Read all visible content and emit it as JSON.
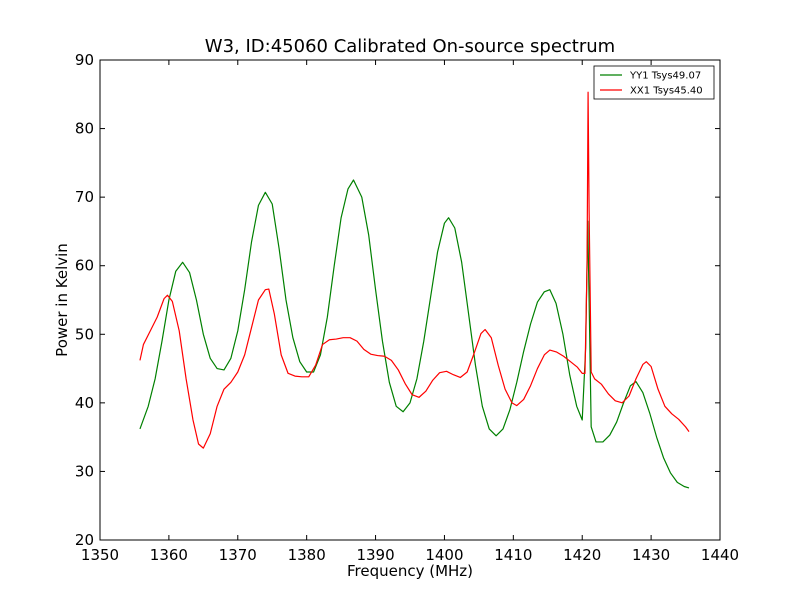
{
  "chart_data": {
    "type": "line",
    "title": "W3, ID:45060 Calibrated On-source spectrum",
    "xlabel": "Frequency (MHz)",
    "ylabel": "Power in Kelvin",
    "xlim": [
      1350,
      1440
    ],
    "ylim": [
      20,
      90
    ],
    "xticks": [
      1350,
      1360,
      1370,
      1380,
      1390,
      1400,
      1410,
      1420,
      1430,
      1440
    ],
    "yticks": [
      20,
      30,
      40,
      50,
      60,
      70,
      80,
      90
    ],
    "legend_position": "top-right",
    "series": [
      {
        "name": "YY1 Tsys49.07",
        "color": "#008000",
        "points": [
          [
            1355.8,
            36.2
          ],
          [
            1357,
            39.5
          ],
          [
            1358,
            43.5
          ],
          [
            1359,
            49.0
          ],
          [
            1360,
            55.0
          ],
          [
            1361,
            59.2
          ],
          [
            1362,
            60.5
          ],
          [
            1363,
            59.0
          ],
          [
            1364,
            55.0
          ],
          [
            1365,
            50.0
          ],
          [
            1366,
            46.5
          ],
          [
            1367,
            45.0
          ],
          [
            1368,
            44.8
          ],
          [
            1369,
            46.5
          ],
          [
            1370,
            50.5
          ],
          [
            1371,
            56.5
          ],
          [
            1372,
            63.5
          ],
          [
            1373,
            68.8
          ],
          [
            1374,
            70.7
          ],
          [
            1375,
            69.0
          ],
          [
            1376,
            62.5
          ],
          [
            1377,
            55.0
          ],
          [
            1378,
            49.5
          ],
          [
            1379,
            46.0
          ],
          [
            1380,
            44.5
          ],
          [
            1381,
            44.5
          ],
          [
            1382,
            47.0
          ],
          [
            1383,
            52.5
          ],
          [
            1384,
            60.0
          ],
          [
            1385,
            67.0
          ],
          [
            1386,
            71.2
          ],
          [
            1386.8,
            72.5
          ],
          [
            1388,
            70.0
          ],
          [
            1389,
            64.5
          ],
          [
            1390,
            56.5
          ],
          [
            1391,
            49.0
          ],
          [
            1392,
            43.0
          ],
          [
            1393,
            39.5
          ],
          [
            1394,
            38.7
          ],
          [
            1395,
            40.0
          ],
          [
            1396,
            43.5
          ],
          [
            1397,
            49.0
          ],
          [
            1398,
            55.5
          ],
          [
            1399,
            62.0
          ],
          [
            1400,
            66.2
          ],
          [
            1400.6,
            67.0
          ],
          [
            1401.5,
            65.5
          ],
          [
            1402.5,
            60.5
          ],
          [
            1403.5,
            53.0
          ],
          [
            1404.5,
            45.5
          ],
          [
            1405.5,
            39.5
          ],
          [
            1406.5,
            36.2
          ],
          [
            1407.5,
            35.2
          ],
          [
            1408.5,
            36.2
          ],
          [
            1409.5,
            39.0
          ],
          [
            1410.5,
            43.0
          ],
          [
            1411.5,
            47.5
          ],
          [
            1412.5,
            51.5
          ],
          [
            1413.5,
            54.7
          ],
          [
            1414.5,
            56.2
          ],
          [
            1415.3,
            56.5
          ],
          [
            1416.2,
            54.5
          ],
          [
            1417.2,
            50.0
          ],
          [
            1418.2,
            44.0
          ],
          [
            1419.2,
            39.5
          ],
          [
            1420.0,
            37.5
          ],
          [
            1420.5,
            48.0
          ],
          [
            1420.8,
            66.5
          ],
          [
            1421.0,
            55.0
          ],
          [
            1421.3,
            36.5
          ],
          [
            1422,
            34.3
          ],
          [
            1423,
            34.3
          ],
          [
            1424,
            35.3
          ],
          [
            1425,
            37.2
          ],
          [
            1426,
            40.0
          ],
          [
            1427,
            42.5
          ],
          [
            1427.8,
            43.1
          ],
          [
            1428.8,
            41.5
          ],
          [
            1429.8,
            38.5
          ],
          [
            1430.8,
            35.0
          ],
          [
            1431.8,
            32.0
          ],
          [
            1432.8,
            29.8
          ],
          [
            1433.8,
            28.4
          ],
          [
            1434.8,
            27.8
          ],
          [
            1435.5,
            27.6
          ]
        ]
      },
      {
        "name": "XX1 Tsys45.40",
        "color": "#ff0000",
        "points": [
          [
            1355.8,
            46.2
          ],
          [
            1356.3,
            48.5
          ],
          [
            1357.3,
            50.5
          ],
          [
            1358.3,
            52.5
          ],
          [
            1359.3,
            55.2
          ],
          [
            1359.8,
            55.7
          ],
          [
            1360.5,
            54.8
          ],
          [
            1361.5,
            50.5
          ],
          [
            1362.5,
            43.5
          ],
          [
            1363.5,
            37.5
          ],
          [
            1364.3,
            34.0
          ],
          [
            1365,
            33.4
          ],
          [
            1366,
            35.5
          ],
          [
            1367,
            39.5
          ],
          [
            1368,
            42.0
          ],
          [
            1369,
            43.0
          ],
          [
            1370,
            44.5
          ],
          [
            1371,
            47.0
          ],
          [
            1372,
            51.0
          ],
          [
            1373,
            55.0
          ],
          [
            1374,
            56.5
          ],
          [
            1374.5,
            56.6
          ],
          [
            1375.3,
            53.0
          ],
          [
            1376.3,
            47.0
          ],
          [
            1377.3,
            44.3
          ],
          [
            1378.3,
            43.9
          ],
          [
            1379.3,
            43.8
          ],
          [
            1380.3,
            43.8
          ],
          [
            1381.3,
            45.5
          ],
          [
            1382.3,
            48.5
          ],
          [
            1383.3,
            49.2
          ],
          [
            1384.3,
            49.3
          ],
          [
            1385.3,
            49.5
          ],
          [
            1386.3,
            49.5
          ],
          [
            1387.3,
            49.0
          ],
          [
            1388.3,
            47.8
          ],
          [
            1389.3,
            47.1
          ],
          [
            1390.3,
            46.9
          ],
          [
            1391.3,
            46.8
          ],
          [
            1392.3,
            46.2
          ],
          [
            1393.3,
            44.8
          ],
          [
            1394.3,
            42.8
          ],
          [
            1395.3,
            41.2
          ],
          [
            1396.3,
            40.8
          ],
          [
            1397.3,
            41.7
          ],
          [
            1398.3,
            43.3
          ],
          [
            1399.3,
            44.4
          ],
          [
            1400.3,
            44.6
          ],
          [
            1401.3,
            44.1
          ],
          [
            1402.3,
            43.7
          ],
          [
            1403.3,
            44.5
          ],
          [
            1404.3,
            47.2
          ],
          [
            1405.3,
            50.1
          ],
          [
            1405.9,
            50.7
          ],
          [
            1406.8,
            49.5
          ],
          [
            1407.8,
            45.5
          ],
          [
            1408.8,
            42.0
          ],
          [
            1409.8,
            40.0
          ],
          [
            1410.5,
            39.6
          ],
          [
            1411.5,
            40.5
          ],
          [
            1412.5,
            42.5
          ],
          [
            1413.5,
            45.0
          ],
          [
            1414.5,
            47.0
          ],
          [
            1415.3,
            47.7
          ],
          [
            1416.3,
            47.4
          ],
          [
            1417.3,
            46.8
          ],
          [
            1418.3,
            46.0
          ],
          [
            1419.3,
            45.2
          ],
          [
            1420.0,
            44.3
          ],
          [
            1420.4,
            44.3
          ],
          [
            1420.7,
            60.0
          ],
          [
            1420.85,
            85.3
          ],
          [
            1421.0,
            68.0
          ],
          [
            1421.3,
            44.5
          ],
          [
            1421.8,
            43.5
          ],
          [
            1422.8,
            42.7
          ],
          [
            1423.8,
            41.3
          ],
          [
            1424.8,
            40.3
          ],
          [
            1425.8,
            40.0
          ],
          [
            1426.8,
            41.0
          ],
          [
            1427.8,
            43.5
          ],
          [
            1428.8,
            45.6
          ],
          [
            1429.3,
            46.0
          ],
          [
            1430.0,
            45.3
          ],
          [
            1431.0,
            42.0
          ],
          [
            1432.0,
            39.5
          ],
          [
            1433.0,
            38.4
          ],
          [
            1434.0,
            37.6
          ],
          [
            1435.0,
            36.5
          ],
          [
            1435.5,
            35.8
          ]
        ]
      }
    ]
  }
}
